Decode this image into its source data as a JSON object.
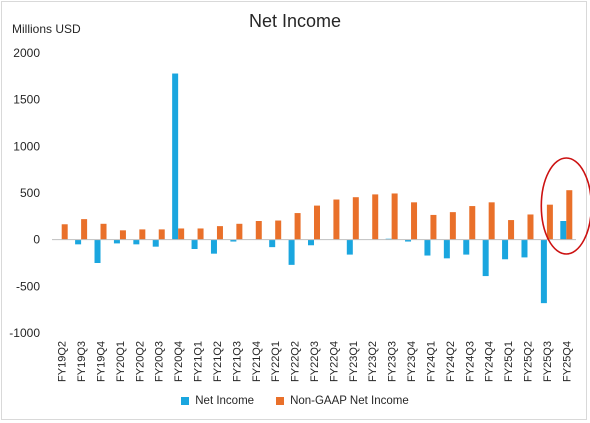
{
  "chart_data": {
    "type": "bar",
    "title": "Net Income",
    "ylabel": "Millions USD",
    "xlabel": "",
    "ylim": [
      -1000,
      2000
    ],
    "yticks": [
      -1000,
      -500,
      0,
      500,
      1000,
      1500,
      2000
    ],
    "grid": false,
    "legend_position": "bottom",
    "categories": [
      "FY19Q2",
      "FY19Q3",
      "FY19Q4",
      "FY20Q1",
      "FY20Q2",
      "FY20Q3",
      "FY20Q4",
      "FY21Q1",
      "FY21Q2",
      "FY21Q3",
      "FY21Q4",
      "FY22Q1",
      "FY22Q2",
      "FY22Q3",
      "FY22Q4",
      "FY23Q1",
      "FY23Q2",
      "FY23Q3",
      "FY23Q4",
      "FY24Q1",
      "FY24Q2",
      "FY24Q3",
      "FY24Q4",
      "FY25Q1",
      "FY25Q2",
      "FY25Q3",
      "FY25Q4"
    ],
    "series": [
      {
        "name": "Net Income",
        "color": "#1aa6df",
        "values": [
          0,
          -50,
          -250,
          -40,
          -50,
          -75,
          1780,
          -100,
          -150,
          -20,
          0,
          -80,
          -270,
          -60,
          0,
          -160,
          0,
          10,
          -20,
          -170,
          -200,
          -160,
          -390,
          -210,
          -190,
          -680,
          200
        ]
      },
      {
        "name": "Non-GAAP Net Income",
        "color": "#e9702a",
        "values": [
          165,
          220,
          170,
          100,
          110,
          110,
          120,
          120,
          145,
          170,
          200,
          205,
          285,
          365,
          430,
          455,
          485,
          495,
          400,
          265,
          295,
          360,
          400,
          210,
          270,
          375,
          530
        ]
      }
    ],
    "annotation": {
      "type": "ellipse-highlight",
      "category": "FY25Q4",
      "color": "#cc1111"
    }
  }
}
